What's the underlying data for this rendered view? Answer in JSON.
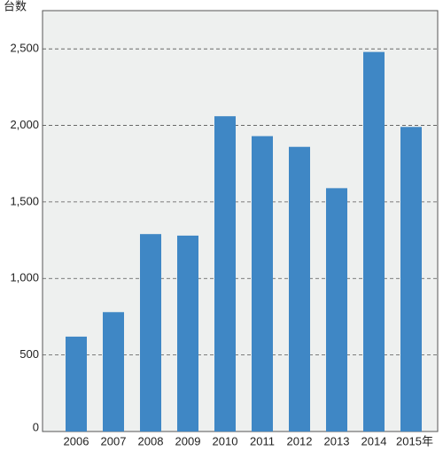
{
  "chart_data": {
    "type": "bar",
    "y_label": "台数",
    "categories": [
      "2006",
      "2007",
      "2008",
      "2009",
      "2010",
      "2011",
      "2012",
      "2013",
      "2014",
      "2015年"
    ],
    "values": [
      620,
      780,
      1290,
      1280,
      2060,
      1930,
      1860,
      1590,
      2480,
      1990
    ],
    "color": "#3f87c5",
    "ylim": [
      0,
      2750
    ],
    "yticks": [
      0,
      500,
      {
        "value": 1000,
        "label": "1,000"
      },
      {
        "value": 1500,
        "label": "1,500"
      },
      {
        "value": 2000,
        "label": "2,000"
      },
      {
        "value": 2500,
        "label": "2,500"
      }
    ],
    "grid": true
  }
}
